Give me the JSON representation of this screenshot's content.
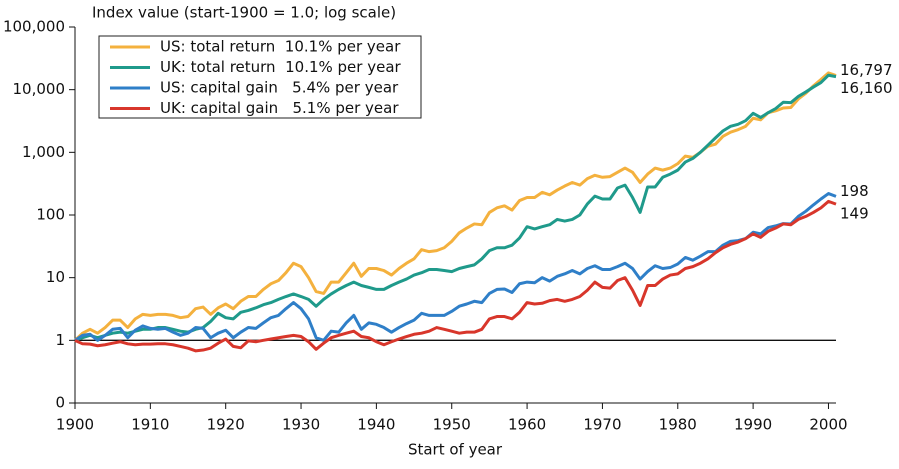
{
  "chart_data": {
    "type": "line",
    "title": "Index value (start-1900 = 1.0; log scale)",
    "x_label": "Start of year",
    "log_scale": true,
    "legend": "upper-left",
    "reference_line": 1,
    "xlim": [
      1900,
      2001
    ],
    "xticks": [
      1900,
      1910,
      1920,
      1930,
      1940,
      1950,
      1960,
      1970,
      1980,
      1990,
      2000
    ],
    "ylim": [
      0.1,
      100000
    ],
    "yticks": [
      {
        "value": 0.1,
        "label": "0"
      },
      1,
      10,
      100,
      {
        "value": 1000,
        "label": "1,000"
      },
      {
        "value": 10000,
        "label": "10,000"
      },
      {
        "value": 100000,
        "label": "100,000"
      }
    ],
    "x": [
      1900,
      1901,
      1902,
      1903,
      1904,
      1905,
      1906,
      1907,
      1908,
      1909,
      1910,
      1911,
      1912,
      1913,
      1914,
      1915,
      1916,
      1917,
      1918,
      1919,
      1920,
      1921,
      1922,
      1923,
      1924,
      1925,
      1926,
      1927,
      1928,
      1929,
      1930,
      1931,
      1932,
      1933,
      1934,
      1935,
      1936,
      1937,
      1938,
      1939,
      1940,
      1941,
      1942,
      1943,
      1944,
      1945,
      1946,
      1947,
      1948,
      1949,
      1950,
      1951,
      1952,
      1953,
      1954,
      1955,
      1956,
      1957,
      1958,
      1959,
      1960,
      1961,
      1962,
      1963,
      1964,
      1965,
      1966,
      1967,
      1968,
      1969,
      1970,
      1971,
      1972,
      1973,
      1974,
      1975,
      1976,
      1977,
      1978,
      1979,
      1980,
      1981,
      1982,
      1983,
      1984,
      1985,
      1986,
      1987,
      1988,
      1989,
      1990,
      1991,
      1992,
      1993,
      1994,
      1995,
      1996,
      1997,
      1998,
      1999,
      2000,
      2001
    ],
    "series": [
      {
        "name": "US: total return  10.1% per year",
        "color": "#f4b13e",
        "end_value_label": "16,797",
        "values": [
          1,
          1.3,
          1.5,
          1.3,
          1.6,
          2.1,
          2.1,
          1.6,
          2.2,
          2.6,
          2.5,
          2.6,
          2.6,
          2.5,
          2.3,
          2.4,
          3.2,
          3.4,
          2.6,
          3.3,
          3.8,
          3.2,
          4.2,
          5,
          5,
          6.5,
          8,
          9,
          12,
          17,
          15,
          10,
          6,
          5.6,
          8.5,
          8.5,
          12,
          17,
          10.5,
          14,
          14,
          13,
          11,
          14,
          17,
          20,
          28,
          26,
          27,
          30,
          38,
          52,
          62,
          72,
          70,
          110,
          130,
          140,
          120,
          170,
          190,
          190,
          230,
          210,
          250,
          290,
          330,
          300,
          380,
          430,
          400,
          410,
          480,
          560,
          480,
          330,
          450,
          560,
          520,
          560,
          660,
          870,
          830,
          1000,
          1250,
          1350,
          1800,
          2100,
          2300,
          2600,
          3500,
          3300,
          4300,
          4600,
          5100,
          5200,
          7100,
          8800,
          11500,
          14500,
          18500,
          16797
        ]
      },
      {
        "name": "UK: total return  10.1% per year",
        "color": "#1f9a8b",
        "end_value_label": "16,160",
        "values": [
          1,
          1.1,
          1.2,
          1.1,
          1.2,
          1.3,
          1.35,
          1.3,
          1.4,
          1.5,
          1.5,
          1.6,
          1.6,
          1.5,
          1.4,
          1.35,
          1.5,
          1.6,
          2,
          2.7,
          2.3,
          2.2,
          2.8,
          3,
          3.3,
          3.7,
          4,
          4.5,
          5,
          5.5,
          5,
          4.5,
          3.5,
          4.5,
          5.5,
          6.5,
          7.5,
          8.5,
          7.5,
          7,
          6.5,
          6.5,
          7.5,
          8.5,
          9.5,
          11,
          12,
          13.5,
          13.5,
          13,
          12.5,
          14,
          15,
          16,
          20,
          27,
          30,
          30,
          33,
          43,
          65,
          60,
          65,
          70,
          85,
          80,
          85,
          100,
          150,
          200,
          180,
          180,
          270,
          300,
          190,
          110,
          280,
          280,
          400,
          450,
          520,
          700,
          800,
          1000,
          1300,
          1700,
          2200,
          2600,
          2800,
          3200,
          4200,
          3600,
          4300,
          5000,
          6300,
          6200,
          7800,
          9200,
          11000,
          13000,
          17000,
          16160
        ]
      },
      {
        "name": "US: capital gain   5.4% per year",
        "color": "#2f7fc8",
        "end_value_label": "198",
        "values": [
          1,
          1.2,
          1.25,
          1,
          1.2,
          1.5,
          1.55,
          1.1,
          1.45,
          1.7,
          1.55,
          1.5,
          1.55,
          1.35,
          1.2,
          1.3,
          1.6,
          1.55,
          1.1,
          1.3,
          1.45,
          1.1,
          1.35,
          1.6,
          1.55,
          1.9,
          2.3,
          2.5,
          3.2,
          4,
          3.2,
          2.2,
          1.1,
          1,
          1.4,
          1.35,
          1.9,
          2.5,
          1.5,
          1.9,
          1.8,
          1.6,
          1.35,
          1.6,
          1.85,
          2.1,
          2.7,
          2.5,
          2.5,
          2.5,
          2.9,
          3.5,
          3.8,
          4.2,
          4,
          5.6,
          6.5,
          6.6,
          5.8,
          8,
          8.5,
          8.3,
          10,
          8.8,
          10.5,
          11.5,
          13,
          11.5,
          14,
          15.5,
          13.5,
          13.5,
          15,
          17,
          14,
          9.5,
          12.5,
          15.5,
          14,
          14.5,
          16.5,
          21,
          19,
          22,
          26,
          26,
          33,
          38,
          39,
          42,
          53,
          50,
          63,
          67,
          73,
          72,
          95,
          115,
          145,
          180,
          220,
          198
        ]
      },
      {
        "name": "UK: capital gain   5.1% per year",
        "color": "#d8362b",
        "end_value_label": "149",
        "values": [
          1,
          0.88,
          0.87,
          0.82,
          0.85,
          0.9,
          0.95,
          0.88,
          0.85,
          0.87,
          0.87,
          0.88,
          0.88,
          0.85,
          0.8,
          0.75,
          0.68,
          0.7,
          0.75,
          0.9,
          1.05,
          0.8,
          0.76,
          0.98,
          0.95,
          1,
          1.05,
          1.1,
          1.15,
          1.2,
          1.15,
          0.95,
          0.72,
          0.9,
          1.1,
          1.2,
          1.3,
          1.4,
          1.15,
          1.1,
          0.95,
          0.85,
          0.95,
          1.05,
          1.15,
          1.25,
          1.3,
          1.4,
          1.6,
          1.5,
          1.4,
          1.3,
          1.35,
          1.35,
          1.5,
          2.2,
          2.4,
          2.4,
          2.2,
          2.8,
          4,
          3.8,
          3.9,
          4.3,
          4.5,
          4.2,
          4.5,
          5,
          6.3,
          8.5,
          7,
          6.8,
          9,
          10,
          6.3,
          3.6,
          7.5,
          7.5,
          9.5,
          11,
          11.5,
          14,
          15,
          17,
          20,
          25,
          30,
          34,
          37,
          42,
          50,
          44,
          55,
          62,
          72,
          70,
          85,
          95,
          110,
          130,
          165,
          149
        ]
      }
    ]
  }
}
